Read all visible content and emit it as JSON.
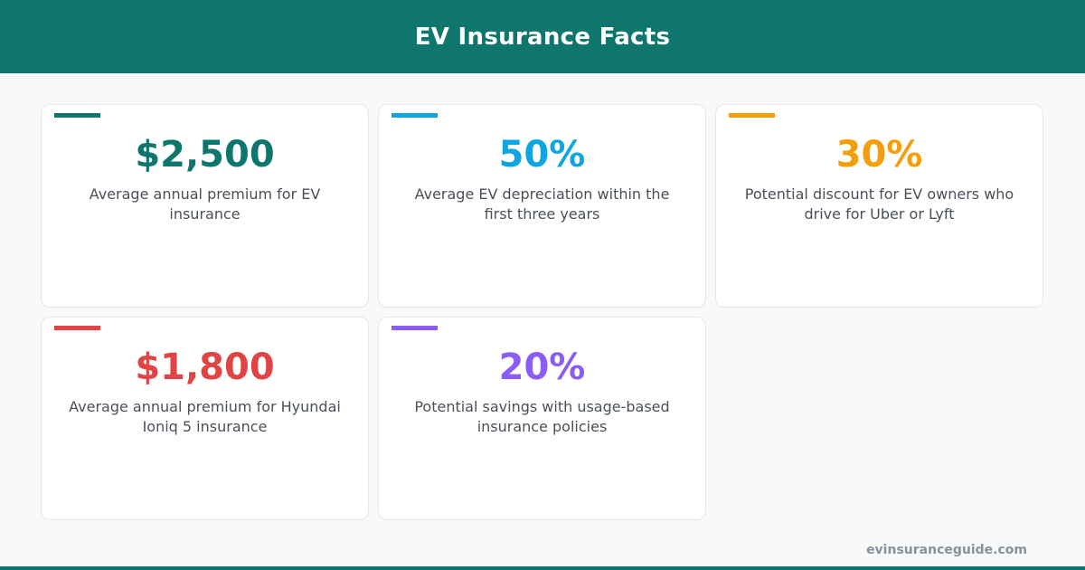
{
  "header": {
    "title": "EV Insurance Facts"
  },
  "cards": [
    {
      "value": "$2,500",
      "description": "Average annual premium for EV insurance",
      "color": "#0f766e"
    },
    {
      "value": "50%",
      "description": "Average EV depreciation within the first three years",
      "color": "#0ea5e0"
    },
    {
      "value": "30%",
      "description": "Potential discount for EV owners who drive for Uber or Lyft",
      "color": "#f59e0b"
    },
    {
      "value": "$1,800",
      "description": "Average annual premium for Hyundai Ioniq 5 insurance",
      "color": "#e04444"
    },
    {
      "value": "20%",
      "description": "Potential savings with usage-based insurance policies",
      "color": "#8b5cf6"
    }
  ],
  "footer": {
    "site": "evinsuranceguide.com"
  },
  "colors": {
    "brand": "#0f766e",
    "background": "#f8f9fb",
    "text": "#4a5059"
  }
}
